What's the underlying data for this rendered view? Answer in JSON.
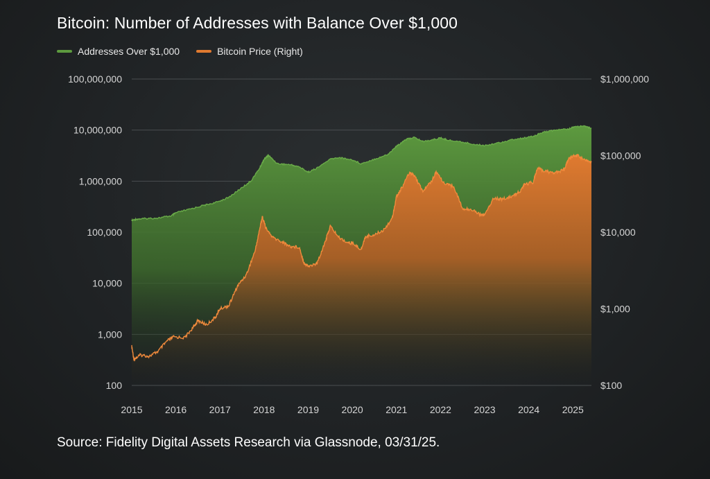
{
  "title": "Bitcoin: Number of Addresses with Balance Over $1,000",
  "source": "Source: Fidelity Digital Assets Research via Glassnode, 03/31/25.",
  "colors": {
    "addresses": "#5d9a3f",
    "price": "#e07a30",
    "grid": "#4a4e50"
  },
  "chart_data": {
    "type": "area",
    "xlabel": "",
    "x_ticks": [
      "2015",
      "2016",
      "2017",
      "2018",
      "2019",
      "2020",
      "2021",
      "2022",
      "2023",
      "2024",
      "2025"
    ],
    "xlim": [
      2015.0,
      2025.42
    ],
    "left_axis": {
      "scale": "log",
      "ylim": [
        100,
        100000000
      ],
      "tick_labels": [
        "100,000,000",
        "10,000,000",
        "1,000,000",
        "100,000",
        "10,000",
        "1,000",
        "100"
      ],
      "tick_values": [
        100000000,
        10000000,
        1000000,
        100000,
        10000,
        1000,
        100
      ]
    },
    "right_axis": {
      "scale": "log",
      "ylim": [
        100,
        1000000
      ],
      "tick_labels": [
        "$1,000,000",
        "$100,000",
        "$10,000",
        "$1,000",
        "$100"
      ],
      "tick_values": [
        1000000,
        100000,
        10000,
        1000,
        100
      ]
    },
    "legend_position": "top-left",
    "series": [
      {
        "name": "Addresses Over $1,000",
        "axis": "left",
        "x": [
          2015.0,
          2015.1,
          2015.3,
          2015.6,
          2015.9,
          2016.0,
          2016.3,
          2016.6,
          2016.9,
          2017.2,
          2017.5,
          2017.7,
          2017.9,
          2018.0,
          2018.1,
          2018.3,
          2018.6,
          2018.8,
          2019.0,
          2019.2,
          2019.5,
          2019.7,
          2020.0,
          2020.2,
          2020.5,
          2020.8,
          2021.0,
          2021.2,
          2021.4,
          2021.6,
          2021.8,
          2022.0,
          2022.2,
          2022.5,
          2022.8,
          2023.0,
          2023.3,
          2023.6,
          2023.9,
          2024.1,
          2024.3,
          2024.6,
          2024.9,
          2025.0,
          2025.2,
          2025.42
        ],
        "values": [
          170000,
          180000,
          185000,
          190000,
          210000,
          240000,
          280000,
          330000,
          380000,
          480000,
          750000,
          1000000,
          1800000,
          2700000,
          3200000,
          2200000,
          2100000,
          1900000,
          1500000,
          1800000,
          2700000,
          2900000,
          2600000,
          2200000,
          2700000,
          3300000,
          4800000,
          6500000,
          7200000,
          6000000,
          6400000,
          7000000,
          6300000,
          5800000,
          5200000,
          5000000,
          5600000,
          6400000,
          7000000,
          7500000,
          9000000,
          10000000,
          10500000,
          11500000,
          12000000,
          11000000
        ]
      },
      {
        "name": "Bitcoin Price (Right)",
        "axis": "right",
        "x": [
          2015.0,
          2015.05,
          2015.2,
          2015.4,
          2015.6,
          2015.8,
          2015.95,
          2016.2,
          2016.4,
          2016.5,
          2016.7,
          2016.9,
          2017.0,
          2017.2,
          2017.4,
          2017.6,
          2017.8,
          2017.9,
          2017.96,
          2018.05,
          2018.2,
          2018.4,
          2018.6,
          2018.8,
          2018.9,
          2019.0,
          2019.2,
          2019.4,
          2019.5,
          2019.7,
          2019.9,
          2020.0,
          2020.2,
          2020.3,
          2020.5,
          2020.7,
          2020.9,
          2021.0,
          2021.1,
          2021.3,
          2021.4,
          2021.6,
          2021.8,
          2021.9,
          2022.1,
          2022.3,
          2022.5,
          2022.7,
          2022.9,
          2023.0,
          2023.2,
          2023.4,
          2023.6,
          2023.8,
          2023.9,
          2024.1,
          2024.2,
          2024.4,
          2024.6,
          2024.8,
          2024.9,
          2025.0,
          2025.1,
          2025.3,
          2025.42
        ],
        "values": [
          320,
          220,
          250,
          240,
          280,
          380,
          430,
          420,
          580,
          700,
          620,
          780,
          1000,
          1100,
          2000,
          2800,
          5800,
          11000,
          16000,
          11000,
          8500,
          7500,
          6500,
          6400,
          4000,
          3600,
          3900,
          8000,
          12000,
          8500,
          7300,
          7200,
          6000,
          8800,
          9300,
          10600,
          15000,
          29000,
          36000,
          60000,
          56000,
          34000,
          47000,
          62000,
          42000,
          40000,
          20000,
          20000,
          17000,
          16800,
          28000,
          27000,
          29000,
          34000,
          42000,
          45000,
          68000,
          62000,
          60000,
          65000,
          90000,
          98000,
          100000,
          85000,
          82000
        ]
      }
    ]
  }
}
